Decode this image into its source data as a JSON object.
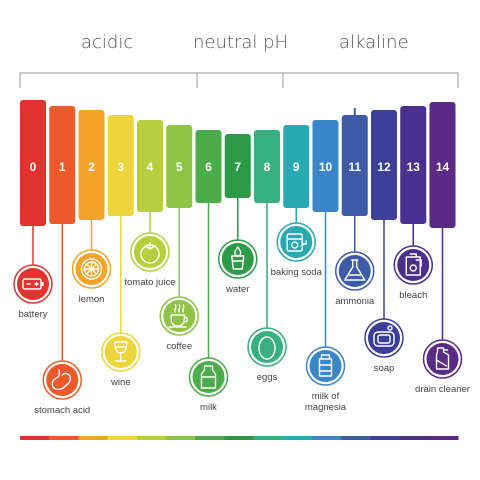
{
  "headers": {
    "acidic": "acidic",
    "neutral": "neutral pH",
    "alkaline": "alkaline"
  },
  "scale": [
    {
      "ph": "0",
      "color": "#e2332f"
    },
    {
      "ph": "1",
      "color": "#ec5a2b"
    },
    {
      "ph": "2",
      "color": "#f3a428"
    },
    {
      "ph": "3",
      "color": "#eed53a"
    },
    {
      "ph": "4",
      "color": "#b8cf3d"
    },
    {
      "ph": "5",
      "color": "#8dc444"
    },
    {
      "ph": "6",
      "color": "#4aad4a"
    },
    {
      "ph": "7",
      "color": "#2d9a48"
    },
    {
      "ph": "8",
      "color": "#35b07e"
    },
    {
      "ph": "9",
      "color": "#29a9b2"
    },
    {
      "ph": "10",
      "color": "#3b86c8"
    },
    {
      "ph": "11",
      "color": "#3e5ba8"
    },
    {
      "ph": "12",
      "color": "#3b3f98"
    },
    {
      "ph": "13",
      "color": "#4a2f8e"
    },
    {
      "ph": "14",
      "color": "#5a2a86"
    }
  ],
  "items": [
    {
      "ph": "0",
      "label": "battery",
      "icon": "battery-icon"
    },
    {
      "ph": "1",
      "label": "stomach acid",
      "icon": "stomach-icon"
    },
    {
      "ph": "2",
      "label": "lemon",
      "icon": "lemon-icon"
    },
    {
      "ph": "3",
      "label": "wine",
      "icon": "wine-glass-icon"
    },
    {
      "ph": "4",
      "label": "tomato juice",
      "icon": "tomato-icon"
    },
    {
      "ph": "5",
      "label": "coffee",
      "icon": "coffee-cup-icon"
    },
    {
      "ph": "6",
      "label": "milk",
      "icon": "milk-bottle-icon"
    },
    {
      "ph": "7",
      "label": "water",
      "icon": "water-glass-icon"
    },
    {
      "ph": "8",
      "label": "eggs",
      "icon": "egg-icon"
    },
    {
      "ph": "9",
      "label": "baking soda",
      "icon": "baking-soda-icon"
    },
    {
      "ph": "10",
      "label": "milk of magnesia",
      "icon": "medicine-bottle-icon"
    },
    {
      "ph": "11",
      "label": "ammonia",
      "icon": "flask-icon"
    },
    {
      "ph": "12",
      "label": "soap",
      "icon": "soap-icon"
    },
    {
      "ph": "13",
      "label": "bleach",
      "icon": "bleach-bottle-icon"
    },
    {
      "ph": "14",
      "label": "drain cleaner",
      "icon": "drain-cleaner-icon"
    }
  ]
}
